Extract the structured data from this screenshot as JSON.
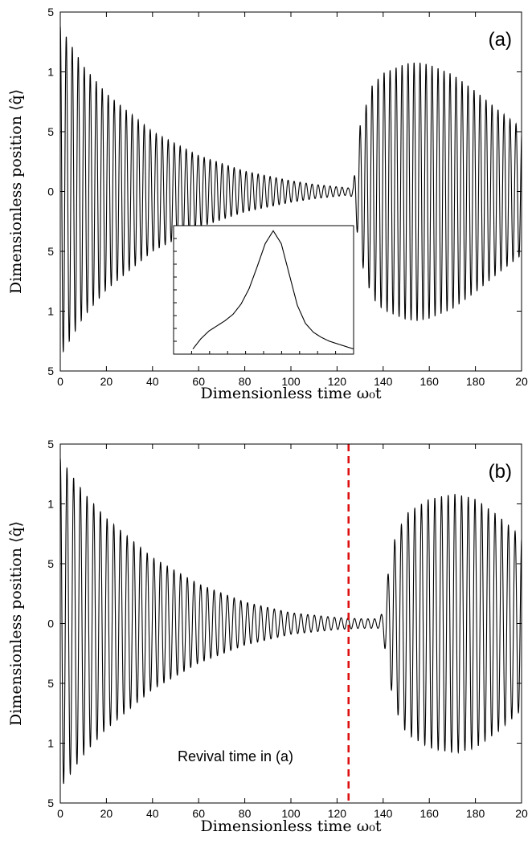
{
  "chart_data": [
    {
      "type": "line",
      "panel_label": "(a)",
      "xlabel": "Dimensionless time ω₀t",
      "ylabel": "Dimensionless position ⟨q̂⟩",
      "xlim": [
        0,
        200
      ],
      "x_ticks": [
        "0",
        "20",
        "40",
        "60",
        "80",
        "100",
        "120",
        "140",
        "160",
        "180",
        "20"
      ],
      "y_tick_labels": [
        "5",
        "1",
        "5",
        "0",
        "5",
        "1",
        "5"
      ],
      "ylim": [
        -1.5,
        1.5
      ],
      "grid": false,
      "series": [
        {
          "oscillation_period": 2.6,
          "envelope": {
            "t": [
              0,
              10,
              20,
              40,
              60,
              80,
              100,
              110,
              120,
              125,
              127,
              130,
              135,
              140,
              150,
              155,
              160,
              170,
              180,
              190,
              200
            ],
            "amplitude": [
              1.38,
              1.05,
              0.82,
              0.5,
              0.3,
              0.17,
              0.09,
              0.06,
              0.04,
              0.03,
              0.05,
              0.55,
              0.88,
              0.99,
              1.07,
              1.08,
              1.06,
              0.98,
              0.84,
              0.68,
              0.53
            ]
          },
          "color": "#000000"
        }
      ],
      "inset": {
        "type": "line",
        "x": [
          0,
          0.05,
          0.1,
          0.15,
          0.2,
          0.25,
          0.3,
          0.35,
          0.4,
          0.45,
          0.5,
          0.55,
          0.6,
          0.65,
          0.7,
          0.75,
          0.8,
          0.85,
          0.9,
          0.95,
          1.0
        ],
        "y": [
          0.04,
          0.12,
          0.18,
          0.22,
          0.26,
          0.31,
          0.39,
          0.51,
          0.68,
          0.86,
          0.96,
          0.86,
          0.62,
          0.38,
          0.24,
          0.17,
          0.13,
          0.1,
          0.08,
          0.06,
          0.04
        ],
        "ylim": [
          0,
          1
        ]
      }
    },
    {
      "type": "line",
      "panel_label": "(b)",
      "xlabel": "Dimensionless time ω₀t",
      "ylabel": "Dimensionless position ⟨q̂⟩",
      "xlim": [
        0,
        200
      ],
      "x_ticks": [
        "0",
        "20",
        "40",
        "60",
        "80",
        "100",
        "120",
        "140",
        "160",
        "180",
        "20"
      ],
      "y_tick_labels": [
        "5",
        "1",
        "5",
        "0",
        "5",
        "1",
        "5"
      ],
      "ylim": [
        -1.5,
        1.5
      ],
      "grid": false,
      "series": [
        {
          "oscillation_period": 2.9,
          "envelope": {
            "t": [
              0,
              10,
              20,
              40,
              60,
              80,
              100,
              120,
              130,
              138,
              140,
              142,
              145,
              150,
              160,
              170,
              172,
              180,
              190,
              200
            ],
            "amplitude": [
              1.38,
              1.1,
              0.88,
              0.55,
              0.33,
              0.18,
              0.09,
              0.05,
              0.04,
              0.04,
              0.1,
              0.4,
              0.7,
              0.92,
              1.04,
              1.08,
              1.08,
              1.04,
              0.9,
              0.72
            ]
          },
          "color": "#000000"
        }
      ],
      "vline": {
        "x": 125,
        "color": "#dd1111",
        "label": "Revival time in (a)"
      }
    }
  ]
}
